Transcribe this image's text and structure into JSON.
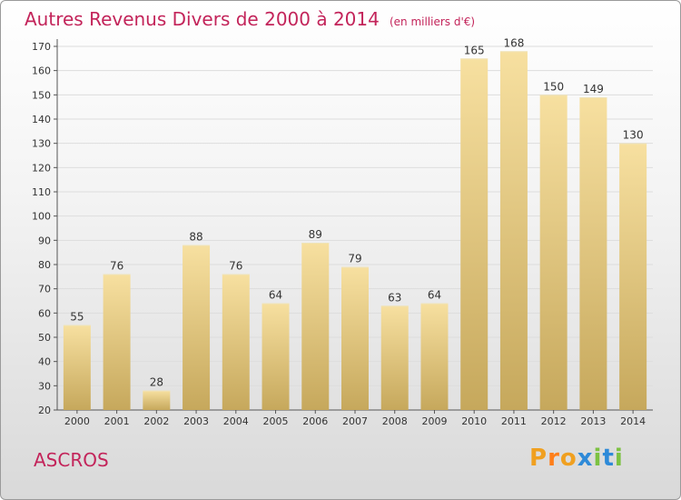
{
  "header": {
    "title": "Autres Revenus Divers de 2000 à 2014",
    "unit": "(en milliers d'€)"
  },
  "footer": {
    "town": "ASCROS",
    "logo_letters": [
      "P",
      "r",
      "o",
      "x",
      "i",
      "t",
      "i"
    ]
  },
  "colors": {
    "title": "#c3245a",
    "bar_light": "#f7e0a0",
    "bar_dark": "#c6a85c",
    "grid": "#dddddd",
    "logo": [
      "#f0a020",
      "#ff7f1a",
      "#f0a020",
      "#2e8ad8",
      "#7cc242",
      "#2e8ad8",
      "#7cc242"
    ]
  },
  "chart_data": {
    "type": "bar",
    "title": "Autres Revenus Divers de 2000 à 2014",
    "xlabel": "",
    "ylabel": "",
    "categories": [
      "2000",
      "2001",
      "2002",
      "2003",
      "2004",
      "2005",
      "2006",
      "2007",
      "2008",
      "2009",
      "2010",
      "2011",
      "2012",
      "2013",
      "2014"
    ],
    "values": [
      55,
      76,
      28,
      88,
      76,
      64,
      89,
      79,
      63,
      64,
      165,
      168,
      150,
      149,
      130
    ],
    "ylim": [
      20,
      170
    ],
    "yticks": [
      20,
      30,
      40,
      50,
      60,
      70,
      80,
      90,
      100,
      110,
      120,
      130,
      140,
      150,
      160,
      170
    ],
    "grid": true,
    "legend": "none"
  }
}
